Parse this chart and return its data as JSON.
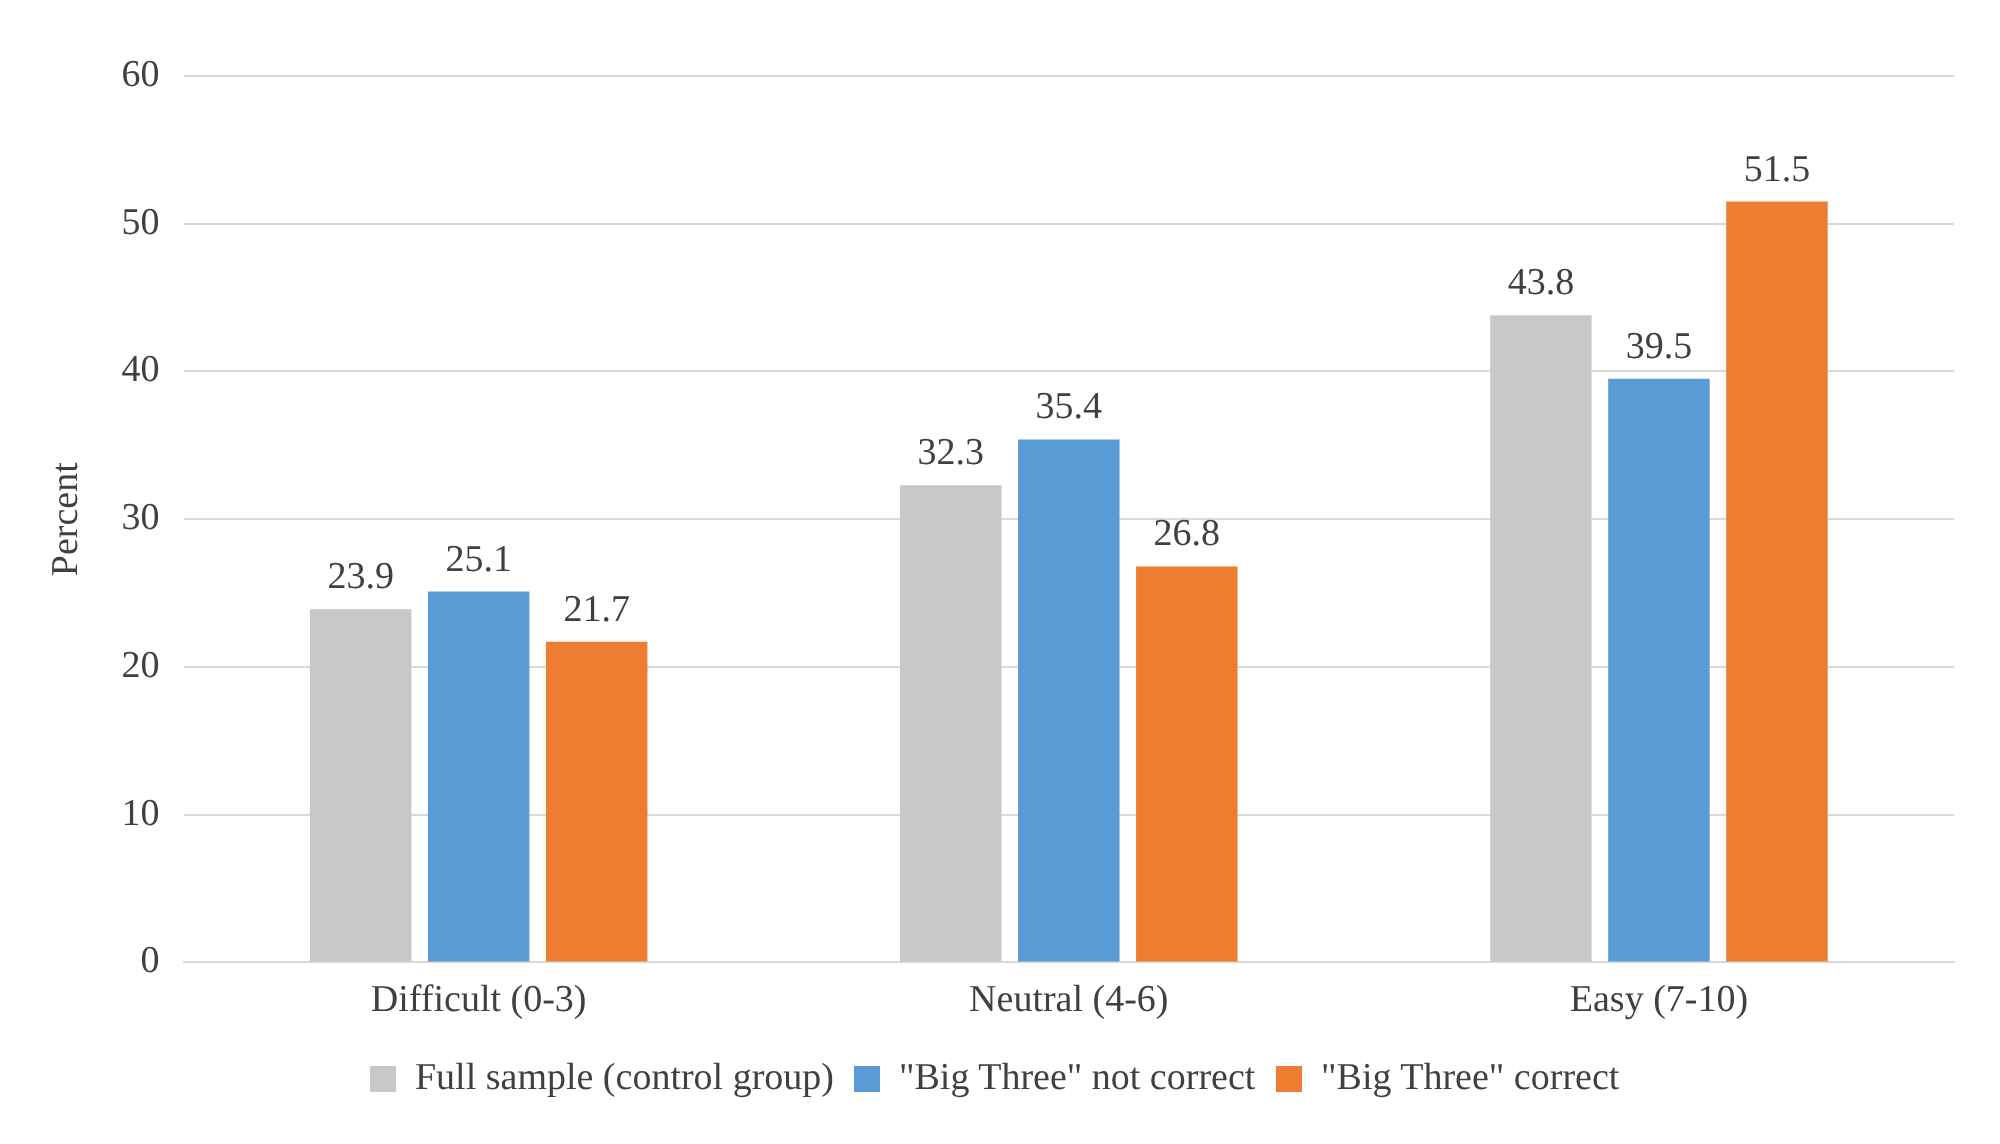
{
  "chart_data": {
    "type": "bar",
    "ylabel": "Percent",
    "categories": [
      "Difficult (0-3)",
      "Neutral (4-6)",
      "Easy (7-10)"
    ],
    "series": [
      {
        "name": "Full sample (control group)",
        "color": "#c8c8c8",
        "values": [
          23.9,
          32.3,
          43.8
        ]
      },
      {
        "name": "\"Big Three\" not correct",
        "color": "#5b9bd5",
        "values": [
          25.1,
          35.4,
          39.5
        ]
      },
      {
        "name": "\"Big Three\" correct",
        "color": "#ed7d31",
        "values": [
          21.7,
          26.8,
          51.5
        ]
      }
    ],
    "ylim": [
      0,
      60
    ],
    "yticks": [
      0,
      10,
      20,
      30,
      40,
      50,
      60
    ],
    "grid": "y",
    "legend": "bottom",
    "data_labels": true
  }
}
